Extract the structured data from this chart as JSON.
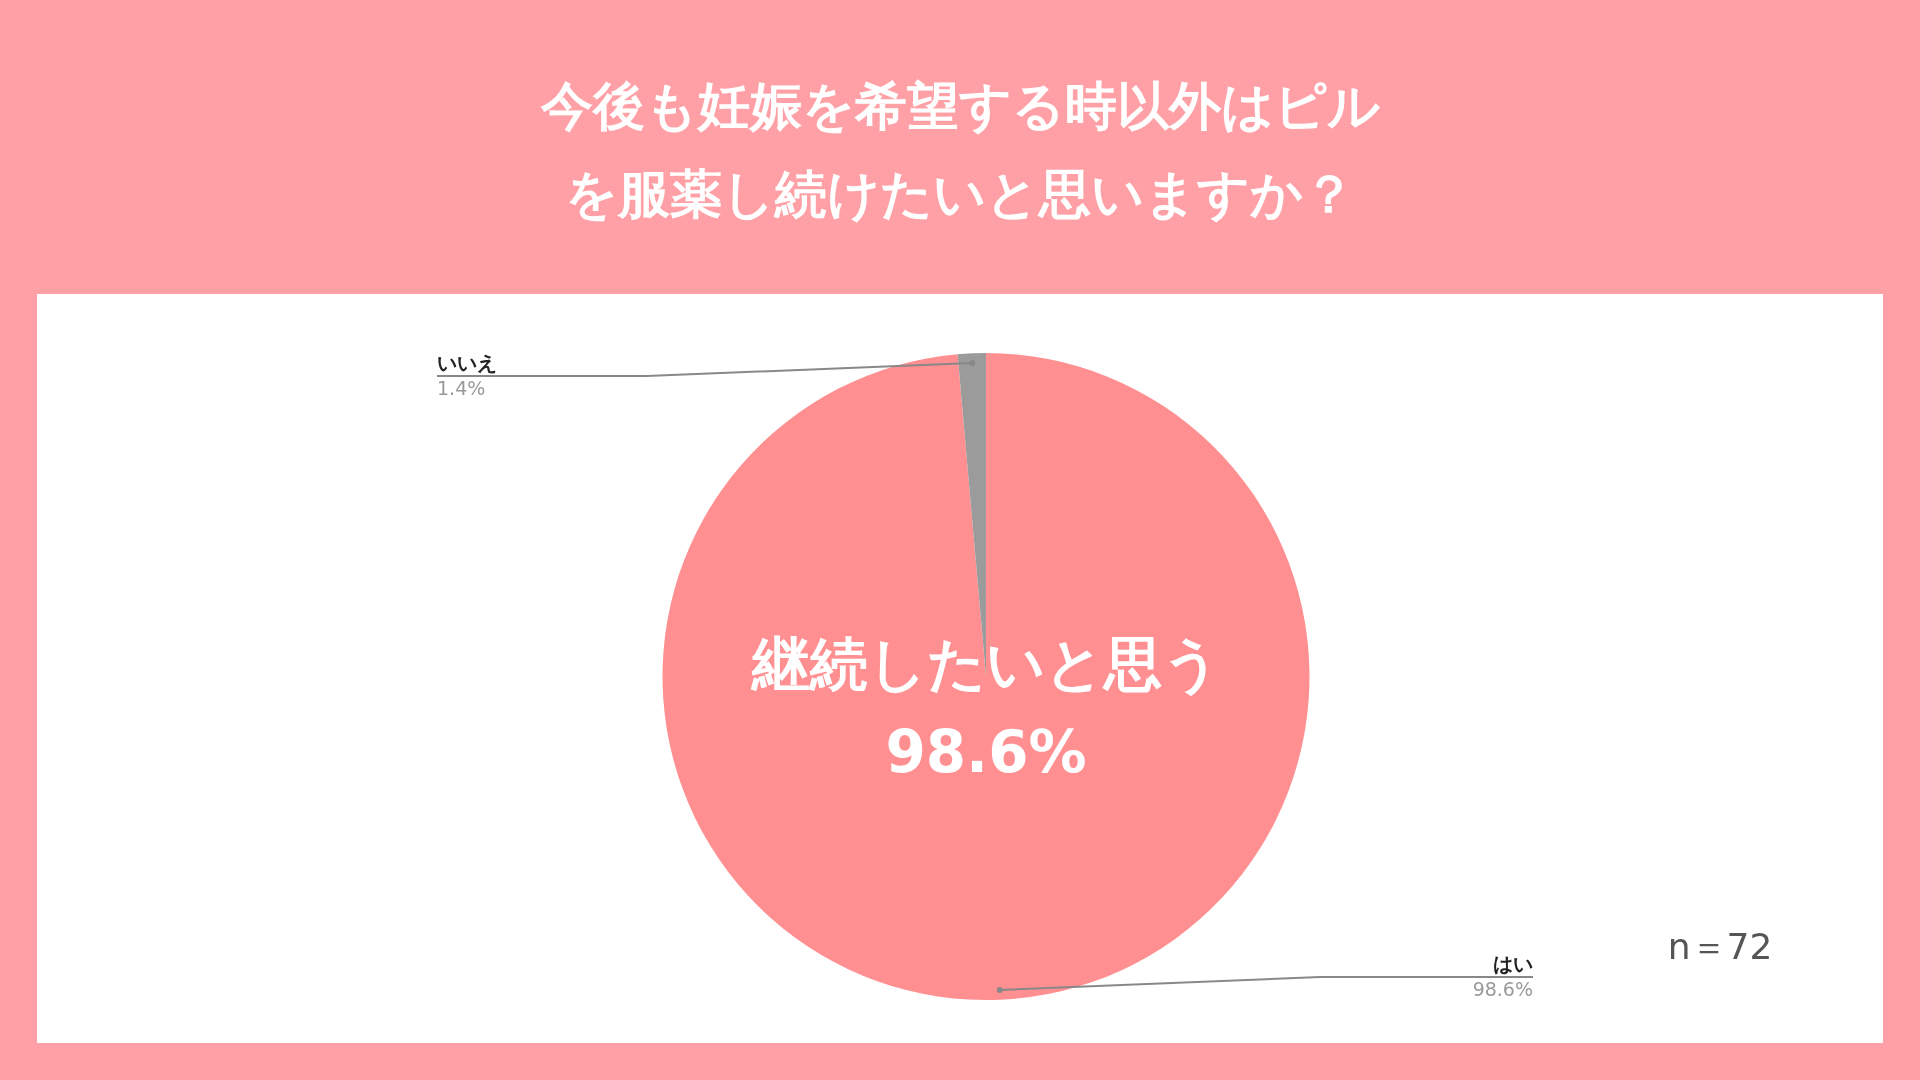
{
  "chart_data": {
    "type": "pie",
    "title": "今後も妊娠を希望する時以外はピルを服薬し続けたいと思いますか？",
    "categories": [
      "はい",
      "いいえ"
    ],
    "values": [
      98.6,
      1.4
    ],
    "colors": [
      "#ff8f91",
      "#9b9b9b"
    ],
    "value_labels": [
      "98.6%",
      "1.4%"
    ],
    "legend": false,
    "annotations": [
      "継続したいと思う\n98.6%",
      "n＝72"
    ]
  }
}
